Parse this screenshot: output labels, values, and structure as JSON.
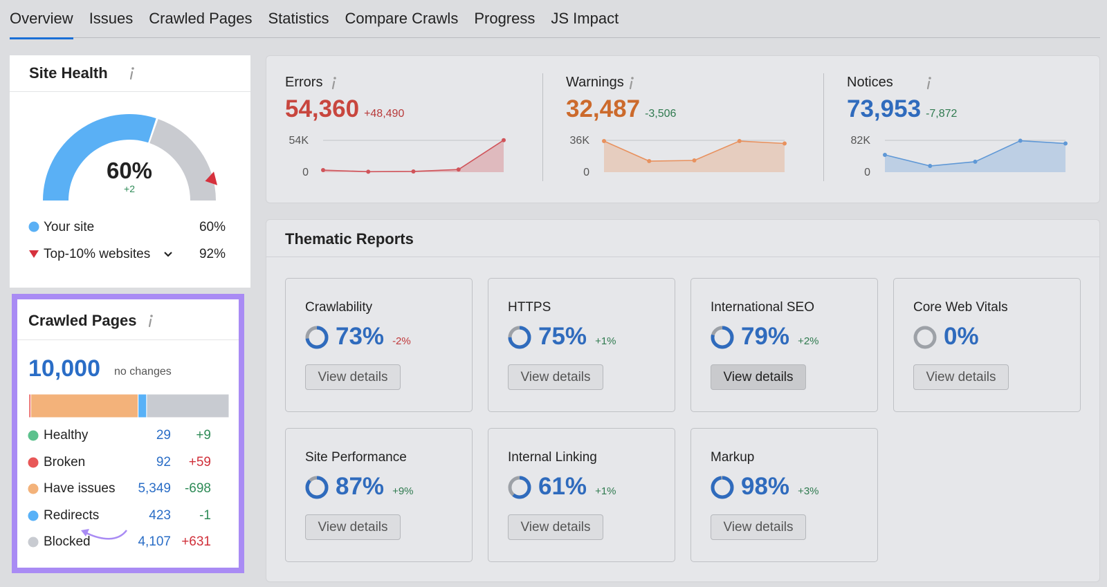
{
  "tabs": [
    "Overview",
    "Issues",
    "Crawled Pages",
    "Statistics",
    "Compare Crawls",
    "Progress",
    "JS Impact"
  ],
  "site_health": {
    "type": "gauge",
    "title": "Site Health",
    "change": "+2",
    "legend": [
      {
        "name": "Your site",
        "value": 60,
        "label": "60%",
        "color": "#5ab0f5"
      },
      {
        "name": "Top-10% websites",
        "value": 92,
        "label": "92%",
        "color": "#d6313d"
      }
    ]
  },
  "crawled_pages": {
    "type": "stacked-bar",
    "title": "Crawled Pages",
    "total": "10,000",
    "total_note": "no changes",
    "rows": [
      {
        "name": "Healthy",
        "color": "#5cc18d",
        "value": 29,
        "change": "+9",
        "change_color": "#2e8b57"
      },
      {
        "name": "Broken",
        "color": "#e85757",
        "value": 92,
        "change": "+59",
        "change_color": "#d0303a"
      },
      {
        "name": "Have issues",
        "color": "#f3b27a",
        "value": 5349,
        "value_label": "5,349",
        "change": "-698",
        "change_color": "#2e8b57"
      },
      {
        "name": "Redirects",
        "color": "#58b1f7",
        "value": 423,
        "change": "-1",
        "change_color": "#2e8b57"
      },
      {
        "name": "Blocked",
        "color": "#c8cbd1",
        "value": 4107,
        "value_label": "4,107",
        "change": "+631",
        "change_color": "#d0303a"
      }
    ]
  },
  "metrics": [
    {
      "type": "line",
      "title": "Errors",
      "total": "54,360",
      "change": "+48,490",
      "color": "#c8463e",
      "change_color": "#b83a3a",
      "line_color": "#d0545a",
      "values": [
        3500,
        800,
        1200,
        4500,
        54360
      ],
      "ylim": [
        0,
        54000
      ],
      "yticks": [
        0,
        {
          "value": 54000,
          "label": "54K"
        }
      ]
    },
    {
      "type": "line",
      "title": "Warnings",
      "total": "32,487",
      "change": "-3,506",
      "color": "#cc6a2c",
      "change_color": "#2f7a4f",
      "line_color": "#e8915e",
      "values": [
        35200,
        12500,
        13300,
        35200,
        32487
      ],
      "ylim": [
        0,
        36000
      ],
      "yticks": [
        0,
        {
          "value": 36000,
          "label": "36K"
        }
      ]
    },
    {
      "type": "line",
      "title": "Notices",
      "total": "73,953",
      "change": "-7,872",
      "color": "#2f6bbd",
      "change_color": "#2f7a4f",
      "line_color": "#5f98d6",
      "values": [
        44600,
        16000,
        27000,
        81000,
        73953
      ],
      "ylim": [
        0,
        82000
      ],
      "yticks": [
        0,
        {
          "value": 82000,
          "label": "82K"
        }
      ]
    }
  ],
  "thematic_reports": {
    "title": "Thematic Reports",
    "reports": [
      {
        "name": "Crawlability",
        "value": 73,
        "label": "73%",
        "change": "-2%",
        "change_color": "#c0393b",
        "button": "View details"
      },
      {
        "name": "HTTPS",
        "value": 75,
        "label": "75%",
        "change": "+1%",
        "change_color": "#2f7a4f",
        "button": "View details"
      },
      {
        "name": "International SEO",
        "value": 79,
        "label": "79%",
        "change": "+2%",
        "change_color": "#2f7a4f",
        "button": "View details"
      },
      {
        "name": "Core Web Vitals",
        "value": 0,
        "label": "0%",
        "button": "View details"
      },
      {
        "name": "Site Performance",
        "value": 87,
        "label": "87%",
        "change": "+9%",
        "change_color": "#2f7a4f",
        "button": "View details"
      },
      {
        "name": "Internal Linking",
        "value": 61,
        "label": "61%",
        "change": "+1%",
        "change_color": "#2f7a4f",
        "button": "View details"
      },
      {
        "name": "Markup",
        "value": 98,
        "label": "98%",
        "change": "+3%",
        "change_color": "#2f7a4f",
        "button": "View details"
      }
    ]
  }
}
